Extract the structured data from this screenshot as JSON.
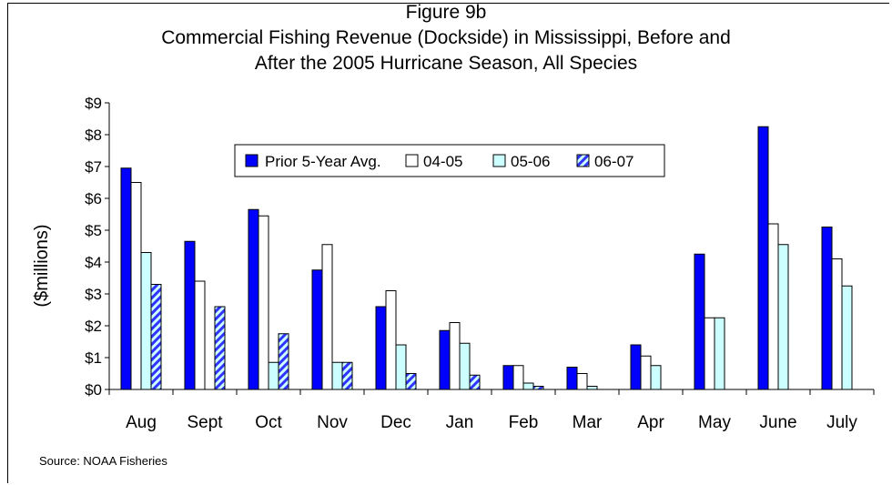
{
  "chart_data": {
    "type": "bar",
    "title_lines": [
      "Figure 9b",
      "Commercial Fishing Revenue (Dockside) in Mississippi, Before and",
      "After the 2005 Hurricane Season, All Species"
    ],
    "ylabel": "($millions)",
    "ylim": [
      0,
      9
    ],
    "yticks": [
      "$0",
      "$1",
      "$2",
      "$3",
      "$4",
      "$5",
      "$6",
      "$7",
      "$8",
      "$9"
    ],
    "categories": [
      "Aug",
      "Sept",
      "Oct",
      "Nov",
      "Dec",
      "Jan",
      "Feb",
      "Mar",
      "Apr",
      "May",
      "June",
      "July"
    ],
    "series": [
      {
        "name": "Prior 5-Year Avg.",
        "color": "#0000FF",
        "pattern": "solid",
        "values": [
          6.95,
          4.65,
          5.65,
          3.75,
          2.6,
          1.85,
          0.75,
          0.7,
          1.4,
          4.25,
          8.25,
          5.1
        ]
      },
      {
        "name": "04-05",
        "color": "#FFFFFF",
        "pattern": "solid",
        "values": [
          6.5,
          3.4,
          5.45,
          4.55,
          3.1,
          2.1,
          0.75,
          0.5,
          1.05,
          2.25,
          5.2,
          4.1
        ]
      },
      {
        "name": "05-06",
        "color": "#CCFFFF",
        "pattern": "solid",
        "values": [
          4.3,
          0,
          0.85,
          0.85,
          1.4,
          1.45,
          0.2,
          0.1,
          0.75,
          2.25,
          4.55,
          3.25
        ]
      },
      {
        "name": "06-07",
        "color": "#3333FF",
        "pattern": "diagonal-stripes",
        "values": [
          3.3,
          2.6,
          1.75,
          0.85,
          0.5,
          0.45,
          0.1,
          null,
          null,
          null,
          null,
          null
        ]
      }
    ],
    "legend_position": "top-center",
    "grid": false,
    "source": "Source: NOAA Fisheries"
  }
}
